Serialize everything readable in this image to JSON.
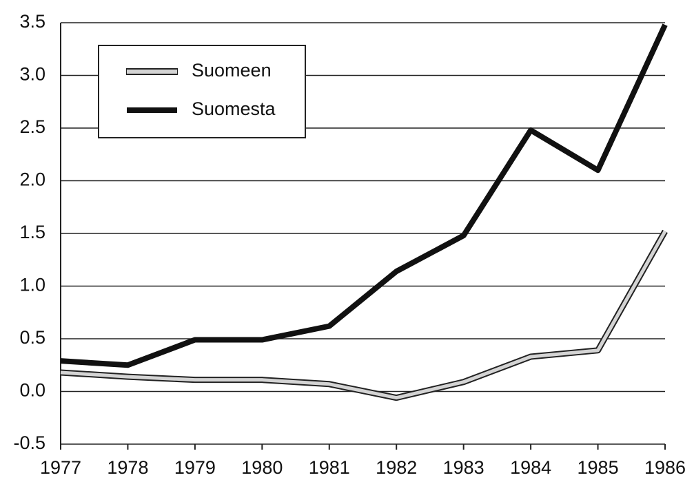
{
  "chart_data": {
    "type": "line",
    "x": [
      1977,
      1978,
      1979,
      1980,
      1981,
      1982,
      1983,
      1984,
      1985,
      1986
    ],
    "series": [
      {
        "name": "Suomeen",
        "color": "#d4d4d4",
        "values": [
          0.18,
          0.14,
          0.11,
          0.11,
          0.07,
          -0.06,
          0.09,
          0.33,
          0.39,
          1.52
        ]
      },
      {
        "name": "Suomesta",
        "color": "#111111",
        "values": [
          0.29,
          0.25,
          0.49,
          0.49,
          0.62,
          1.14,
          1.48,
          2.48,
          2.1,
          3.48
        ]
      }
    ],
    "xlim": [
      1977,
      1986
    ],
    "xticks": [
      1977,
      1978,
      1979,
      1980,
      1981,
      1982,
      1983,
      1984,
      1985,
      1986
    ],
    "ylim": [
      -0.5,
      3.5
    ],
    "yticks": [
      -0.5,
      {
        "value": 0,
        "label": "0.0"
      },
      0.5,
      {
        "value": 1,
        "label": "1.0"
      },
      1.5,
      {
        "value": 2,
        "label": "2.0"
      },
      2.5,
      {
        "value": 3,
        "label": "3.0"
      },
      3.5
    ],
    "grid": true,
    "legend": "upper-left"
  }
}
